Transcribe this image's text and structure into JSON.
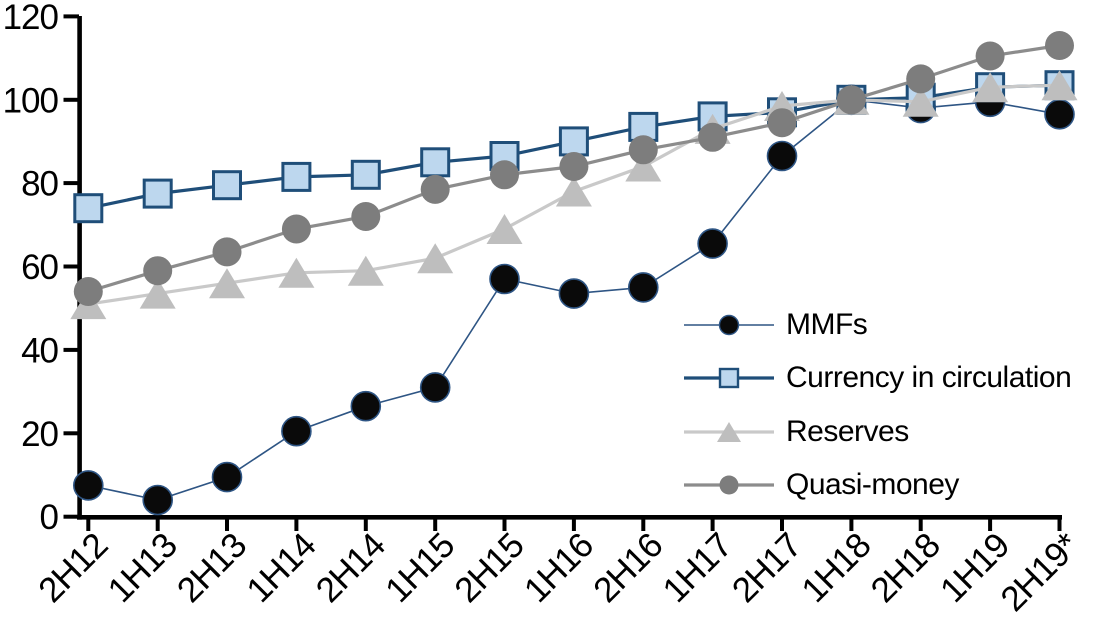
{
  "chart_data": {
    "type": "line",
    "title": "",
    "xlabel": "",
    "ylabel": "",
    "ylim": [
      0,
      120
    ],
    "y_ticks": [
      0,
      20,
      40,
      60,
      80,
      100,
      120
    ],
    "grid": false,
    "axis_color": "#000000",
    "legend_position": "inside-right",
    "categories": [
      "2H12",
      "1H13",
      "2H13",
      "1H14",
      "2H14",
      "1H15",
      "2H15",
      "1H16",
      "2H16",
      "1H17",
      "2H17",
      "1H18",
      "2H18",
      "1H19",
      "2H19*"
    ],
    "series": [
      {
        "name": "MMFs",
        "line_color": "#2e5584",
        "line_width": 1.6,
        "marker": {
          "shape": "circle",
          "size": 29,
          "fill": "#0a0a0a",
          "stroke": "#2e5584",
          "stroke_width": 1.6
        },
        "values": [
          7.5,
          4,
          9.5,
          20.5,
          26.5,
          31,
          57,
          53.5,
          55,
          65.5,
          86.5,
          100,
          98,
          99.5,
          96.5
        ]
      },
      {
        "name": "Currency in circulation",
        "line_color": "#1f4e79",
        "line_width": 3.2,
        "marker": {
          "shape": "square",
          "size": 27,
          "fill": "#bdd7ee",
          "stroke": "#1f4e79",
          "stroke_width": 3
        },
        "values": [
          74,
          77.5,
          79.5,
          81.5,
          82,
          85,
          86.5,
          90,
          93.5,
          96,
          97,
          100,
          100.5,
          103,
          103.5
        ]
      },
      {
        "name": "Reserves",
        "line_color": "#c9c9c9",
        "line_width": 3.2,
        "marker": {
          "shape": "triangle",
          "size": 30,
          "fill": "#bebebe",
          "stroke": "",
          "stroke_width": 0
        },
        "values": [
          51,
          53.5,
          56,
          58.5,
          59,
          62,
          69,
          78,
          84,
          93,
          98.5,
          100,
          99.5,
          103,
          103.5
        ]
      },
      {
        "name": "Quasi-money",
        "line_color": "#8c8c8c",
        "line_width": 3.2,
        "marker": {
          "shape": "circle",
          "size": 29,
          "fill": "#7d7d7d",
          "stroke": "",
          "stroke_width": 0
        },
        "values": [
          54,
          59,
          63.5,
          69,
          72,
          78.5,
          82,
          84,
          88,
          91,
          94.5,
          100,
          105,
          110.5,
          113
        ]
      }
    ]
  }
}
